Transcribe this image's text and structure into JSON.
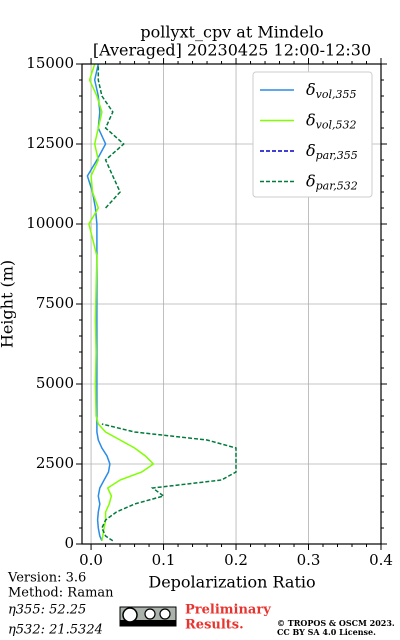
{
  "chart_data": {
    "type": "profile",
    "title": "pollyxt_cpv at Mindelo",
    "subtitle": "[Averaged] 20230425 12:00-12:30",
    "x_label": "Depolarization Ratio",
    "y_label": "Height (m)",
    "xlim": [
      -0.0125,
      0.4
    ],
    "ylim": [
      0,
      15000
    ],
    "xticks": [
      {
        "value": 0,
        "label": "0.0"
      },
      0.1,
      0.2,
      0.3,
      0.4
    ],
    "yticks": [
      0,
      2500,
      5000,
      7500,
      10000,
      12500,
      15000
    ],
    "grid": true,
    "legend": "upper right",
    "heights": [
      100,
      250,
      500,
      750,
      1000,
      1250,
      1500,
      1750,
      2000,
      2250,
      2500,
      2750,
      3000,
      3250,
      3500,
      3750,
      4000,
      5000,
      6000,
      7000,
      8000,
      9000,
      10000,
      10500,
      11000,
      11500,
      12000,
      12500,
      13000,
      13500,
      14000,
      14500,
      15000
    ],
    "series": [
      {
        "name": "δvol,355",
        "color": "#2a8ce6",
        "dash": false,
        "values": [
          0.015,
          0.012,
          0.01,
          0.009,
          0.01,
          0.012,
          0.01,
          0.012,
          0.018,
          0.024,
          0.026,
          0.022,
          0.015,
          0.01,
          0.008,
          0.008,
          0.008,
          0.008,
          0.008,
          0.008,
          0.008,
          0.008,
          0.008,
          0.006,
          0.002,
          -0.005,
          0.008,
          0.02,
          0.01,
          0.012,
          0.01,
          0.005,
          0.01
        ]
      },
      {
        "name": "δvol,532",
        "color": "#80ff00",
        "dash": false,
        "values": [
          0.015,
          0.016,
          0.018,
          0.02,
          0.02,
          0.025,
          0.028,
          0.023,
          0.04,
          0.07,
          0.086,
          0.075,
          0.06,
          0.04,
          0.02,
          0.01,
          0.007,
          0.006,
          0.007,
          0.006,
          0.007,
          0.008,
          -0.003,
          0.01,
          0.002,
          0.0,
          0.01,
          0.005,
          0.01,
          0.015,
          0.008,
          -0.002,
          0.005
        ]
      },
      {
        "name": "δpar,355",
        "color": "#0000cc",
        "dash": true,
        "values": [
          null,
          null,
          null,
          null,
          null,
          null,
          null,
          null,
          null,
          null,
          null,
          null,
          null,
          null,
          null,
          null,
          null,
          null,
          null,
          null,
          null,
          null,
          null,
          null,
          null,
          null,
          null,
          null,
          null,
          null,
          null,
          null,
          null
        ]
      },
      {
        "name": "δpar,532",
        "color": "#007a3d",
        "dash": true,
        "values": [
          0.03,
          0.02,
          0.015,
          0.02,
          0.035,
          0.06,
          0.1,
          0.085,
          0.18,
          0.2,
          0.2,
          0.2,
          0.2,
          0.16,
          0.06,
          0.015,
          null,
          null,
          null,
          null,
          null,
          null,
          null,
          0.02,
          0.04,
          0.03,
          0.02,
          0.045,
          0.02,
          0.03,
          0.015,
          0.01,
          0.01
        ]
      }
    ]
  },
  "footer": {
    "version": "Version: 3.6",
    "method": "Method: Raman",
    "eta355": "η355:  52.25",
    "eta532": "η532: 21.5324",
    "preliminary_1": "Preliminary",
    "preliminary_2": "Results.",
    "copyright_1": "© TROPOS & OSCM 2023.",
    "copyright_2": "CC BY SA 4.0 License."
  }
}
